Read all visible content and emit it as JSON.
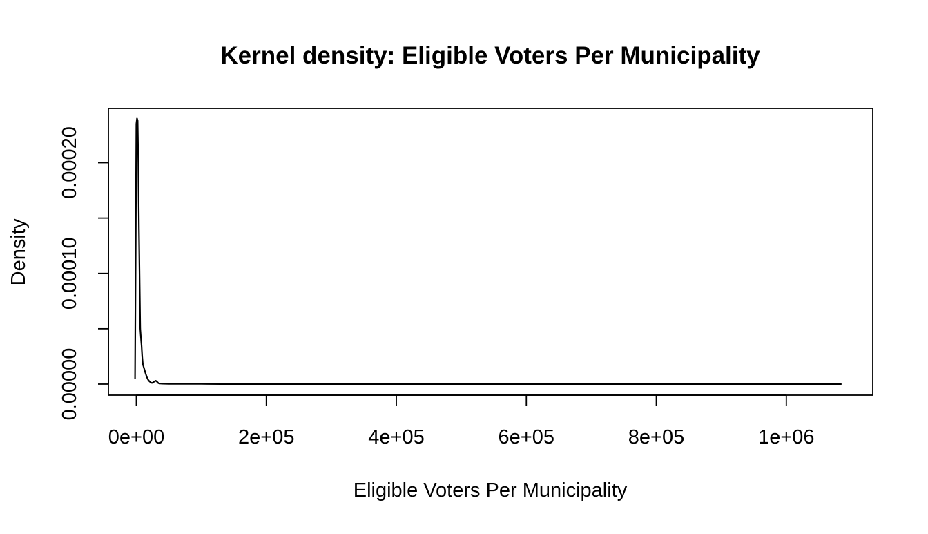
{
  "chart_data": {
    "type": "line",
    "title": "Kernel density: Eligible Voters Per Municipality",
    "xlabel": "Eligible Voters Per Municipality",
    "ylabel": "Density",
    "xlim": [
      -43000,
      1133000
    ],
    "ylim": [
      -1e-05,
      0.000249
    ],
    "grid": false,
    "legend": "none",
    "line_color": "#000000",
    "x_ticks": [
      {
        "value": 0,
        "label": "0e+00"
      },
      {
        "value": 200000,
        "label": "2e+05"
      },
      {
        "value": 400000,
        "label": "4e+05"
      },
      {
        "value": 600000,
        "label": "6e+05"
      },
      {
        "value": 800000,
        "label": "8e+05"
      },
      {
        "value": 1000000,
        "label": "1e+06"
      }
    ],
    "y_ticks": [
      {
        "value": 0,
        "label": "0.00000"
      },
      {
        "value": 5e-05,
        "label": ""
      },
      {
        "value": 0.0001,
        "label": "0.00010"
      },
      {
        "value": 0.00015,
        "label": ""
      },
      {
        "value": 0.0002,
        "label": "0.00020"
      }
    ],
    "series": [
      {
        "x": [
          -2000,
          -1000,
          0,
          1000,
          2000,
          3000,
          4000,
          5000,
          6000,
          7000,
          8000,
          9000,
          10000,
          11000,
          12000,
          14000,
          16000,
          18000,
          20000,
          22000,
          24000,
          26000,
          28000,
          30000,
          32000,
          34000,
          36000,
          40000,
          45000,
          50000,
          60000,
          70000,
          80000,
          90000,
          100000,
          110000,
          130000,
          150000,
          200000,
          250000,
          300000,
          400000,
          500000,
          600000,
          700000,
          800000,
          900000,
          1000000,
          1085000
        ],
        "y": [
          5e-06,
          0.00012,
          0.000235,
          0.00024,
          0.000238,
          0.0002,
          0.00014,
          9.5e-05,
          5e-05,
          4.2e-05,
          3.5e-05,
          2.5e-05,
          1.8e-05,
          1.6e-05,
          1.4e-05,
          1e-05,
          6.5e-06,
          4e-06,
          2.5e-06,
          1.5e-06,
          1e-06,
          1.5e-06,
          2.5e-06,
          3e-06,
          2e-06,
          8e-07,
          5e-07,
          4e-07,
          3e-07,
          2e-07,
          2e-07,
          2e-07,
          2e-07,
          2e-07,
          2e-07,
          1e-07,
          5e-08,
          3e-08,
          2e-08,
          1e-08,
          1e-08,
          1e-08,
          0,
          0,
          0,
          0,
          0,
          1e-08,
          0
        ]
      }
    ]
  }
}
